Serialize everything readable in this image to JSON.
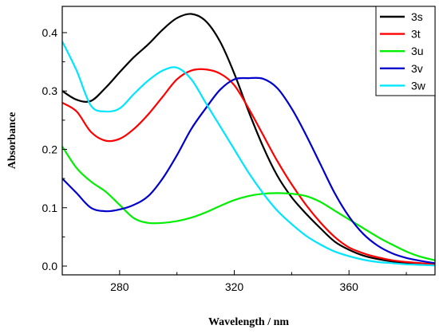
{
  "chart_data": {
    "type": "line",
    "title": "",
    "xlabel": "Wavelength / nm",
    "ylabel": "Absorbance",
    "xlim": [
      260,
      390
    ],
    "ylim": [
      -0.015,
      0.445
    ],
    "xticks": [
      280,
      320,
      360
    ],
    "xtick_labels": [
      "280",
      "320",
      "360"
    ],
    "yticks": [
      0.0,
      0.1,
      0.2,
      0.3,
      0.4
    ],
    "ytick_labels": [
      "0.0",
      "0.1",
      "0.2",
      "0.3",
      "0.4"
    ],
    "grid": false,
    "legend": "top-right",
    "series": [
      {
        "name": "3s",
        "color": "#000000",
        "x": [
          260,
          265,
          270,
          275,
          280,
          285,
          290,
          295,
          300,
          305,
          310,
          315,
          320,
          325,
          330,
          335,
          340,
          345,
          350,
          355,
          360,
          365,
          370,
          375,
          380,
          385,
          390
        ],
        "y": [
          0.3,
          0.285,
          0.283,
          0.305,
          0.332,
          0.358,
          0.38,
          0.405,
          0.425,
          0.432,
          0.42,
          0.385,
          0.33,
          0.265,
          0.205,
          0.155,
          0.118,
          0.09,
          0.065,
          0.042,
          0.028,
          0.018,
          0.012,
          0.008,
          0.005,
          0.003,
          0.002
        ]
      },
      {
        "name": "3t",
        "color": "#ff0000",
        "x": [
          260,
          265,
          270,
          275,
          280,
          285,
          290,
          295,
          300,
          305,
          310,
          315,
          320,
          325,
          330,
          335,
          340,
          345,
          350,
          355,
          360,
          365,
          370,
          375,
          380,
          385,
          390
        ],
        "y": [
          0.28,
          0.265,
          0.23,
          0.215,
          0.218,
          0.235,
          0.26,
          0.29,
          0.32,
          0.335,
          0.337,
          0.33,
          0.31,
          0.27,
          0.225,
          0.18,
          0.14,
          0.105,
          0.075,
          0.05,
          0.032,
          0.022,
          0.015,
          0.01,
          0.007,
          0.005,
          0.003
        ]
      },
      {
        "name": "3u",
        "color": "#00ee00",
        "x": [
          260,
          265,
          270,
          275,
          280,
          285,
          290,
          295,
          300,
          305,
          310,
          315,
          320,
          325,
          330,
          335,
          340,
          345,
          350,
          355,
          360,
          365,
          370,
          375,
          380,
          385,
          390
        ],
        "y": [
          0.205,
          0.168,
          0.145,
          0.128,
          0.105,
          0.082,
          0.074,
          0.074,
          0.077,
          0.083,
          0.092,
          0.103,
          0.113,
          0.12,
          0.124,
          0.125,
          0.124,
          0.12,
          0.11,
          0.095,
          0.08,
          0.065,
          0.05,
          0.037,
          0.025,
          0.016,
          0.01
        ]
      },
      {
        "name": "3v",
        "color": "#0000cc",
        "x": [
          260,
          265,
          270,
          275,
          280,
          285,
          290,
          295,
          300,
          305,
          310,
          315,
          320,
          325,
          330,
          335,
          340,
          345,
          350,
          355,
          360,
          365,
          370,
          375,
          380,
          385,
          390
        ],
        "y": [
          0.15,
          0.125,
          0.1,
          0.094,
          0.097,
          0.105,
          0.12,
          0.15,
          0.19,
          0.235,
          0.27,
          0.302,
          0.32,
          0.322,
          0.321,
          0.305,
          0.27,
          0.225,
          0.175,
          0.125,
          0.085,
          0.055,
          0.035,
          0.022,
          0.014,
          0.009,
          0.005
        ]
      },
      {
        "name": "3w",
        "color": "#00e5ff",
        "x": [
          260,
          265,
          270,
          275,
          280,
          285,
          290,
          295,
          300,
          305,
          310,
          315,
          320,
          325,
          330,
          335,
          340,
          345,
          350,
          355,
          360,
          365,
          370,
          375,
          380,
          385,
          390
        ],
        "y": [
          0.385,
          0.335,
          0.275,
          0.265,
          0.27,
          0.295,
          0.318,
          0.335,
          0.34,
          0.32,
          0.28,
          0.24,
          0.2,
          0.16,
          0.125,
          0.095,
          0.072,
          0.052,
          0.037,
          0.025,
          0.017,
          0.011,
          0.007,
          0.005,
          0.003,
          0.002,
          0.001
        ]
      }
    ]
  }
}
